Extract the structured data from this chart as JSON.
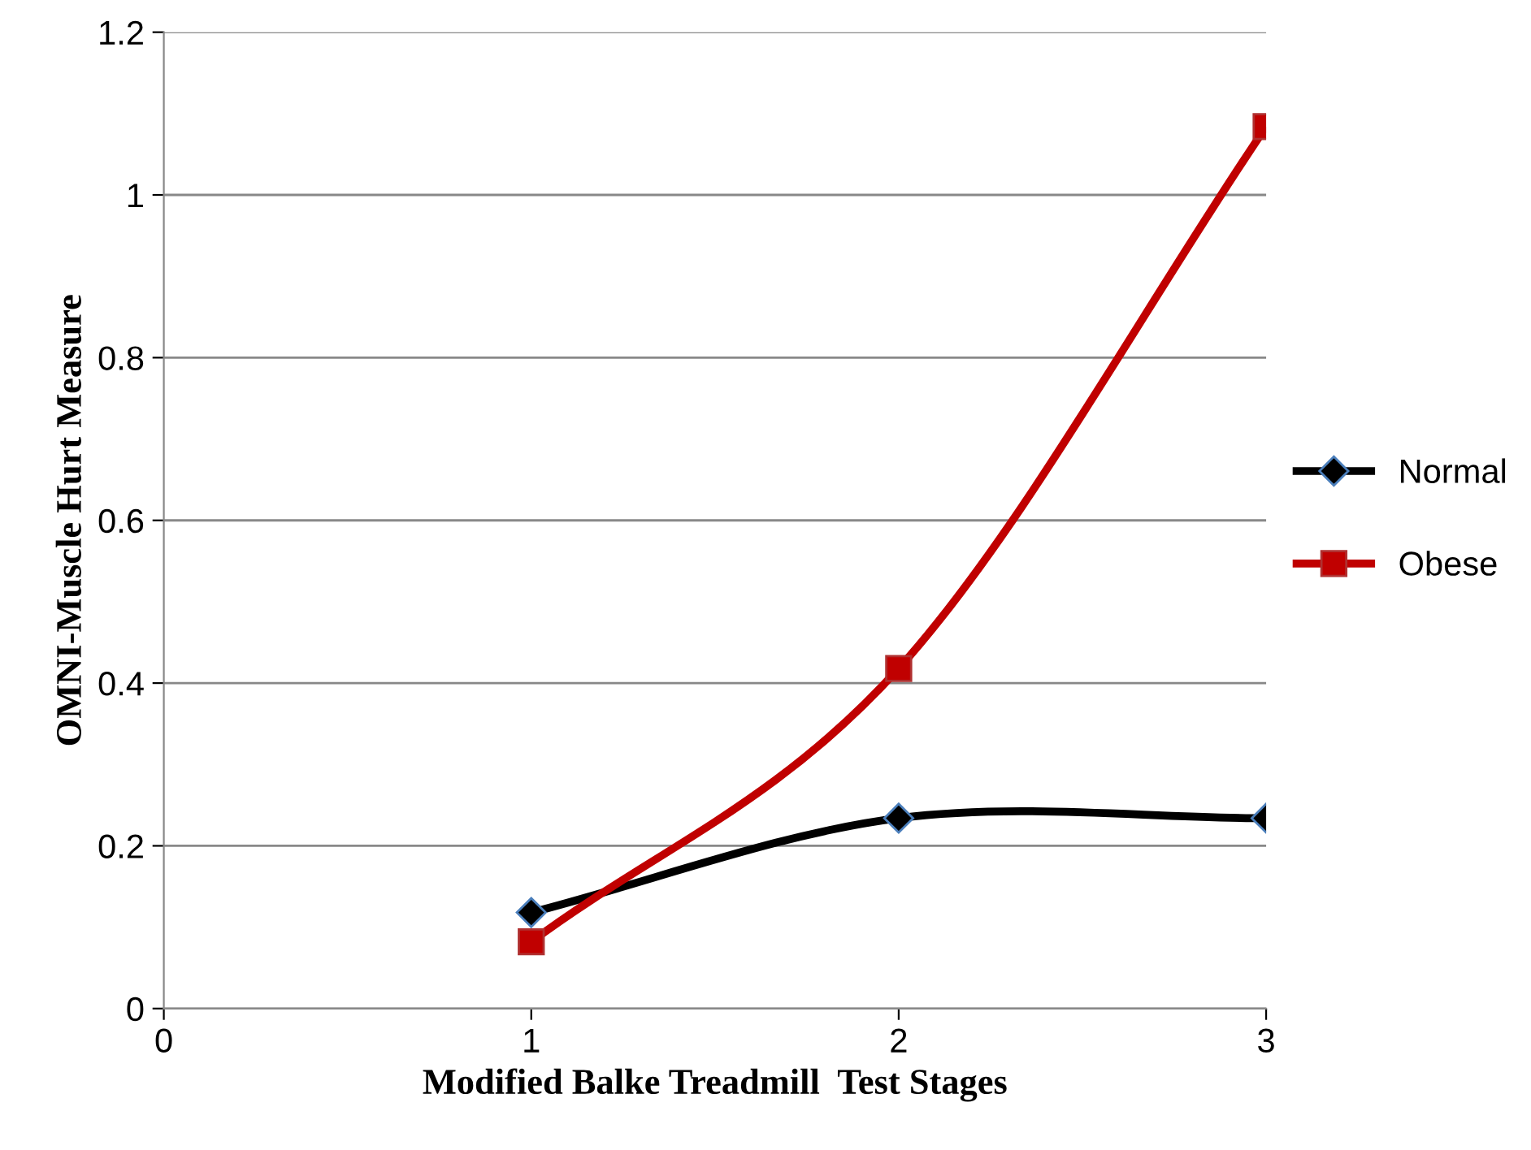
{
  "chart_data": {
    "type": "line",
    "xlabel": "Modified Balke Treadmill  Test Stages",
    "ylabel": "OMNI-Muscle Hurt Measure",
    "x": [
      1,
      2,
      3
    ],
    "series": [
      {
        "name": "Normal",
        "color": "#000000",
        "marker": "diamond",
        "values": [
          0.118,
          0.234,
          0.234
        ]
      },
      {
        "name": "Obese",
        "color": "#c00000",
        "marker": "square",
        "values": [
          0.082,
          0.418,
          1.084
        ]
      }
    ],
    "xlim": [
      0,
      3
    ],
    "xticks": [
      0,
      1,
      2,
      3
    ],
    "ylim": [
      0,
      1.2
    ],
    "yticks": [
      0,
      0.2,
      0.4,
      0.6,
      0.8,
      1,
      1.2
    ],
    "grid": "y",
    "legend": "right",
    "line_style": "solid"
  }
}
